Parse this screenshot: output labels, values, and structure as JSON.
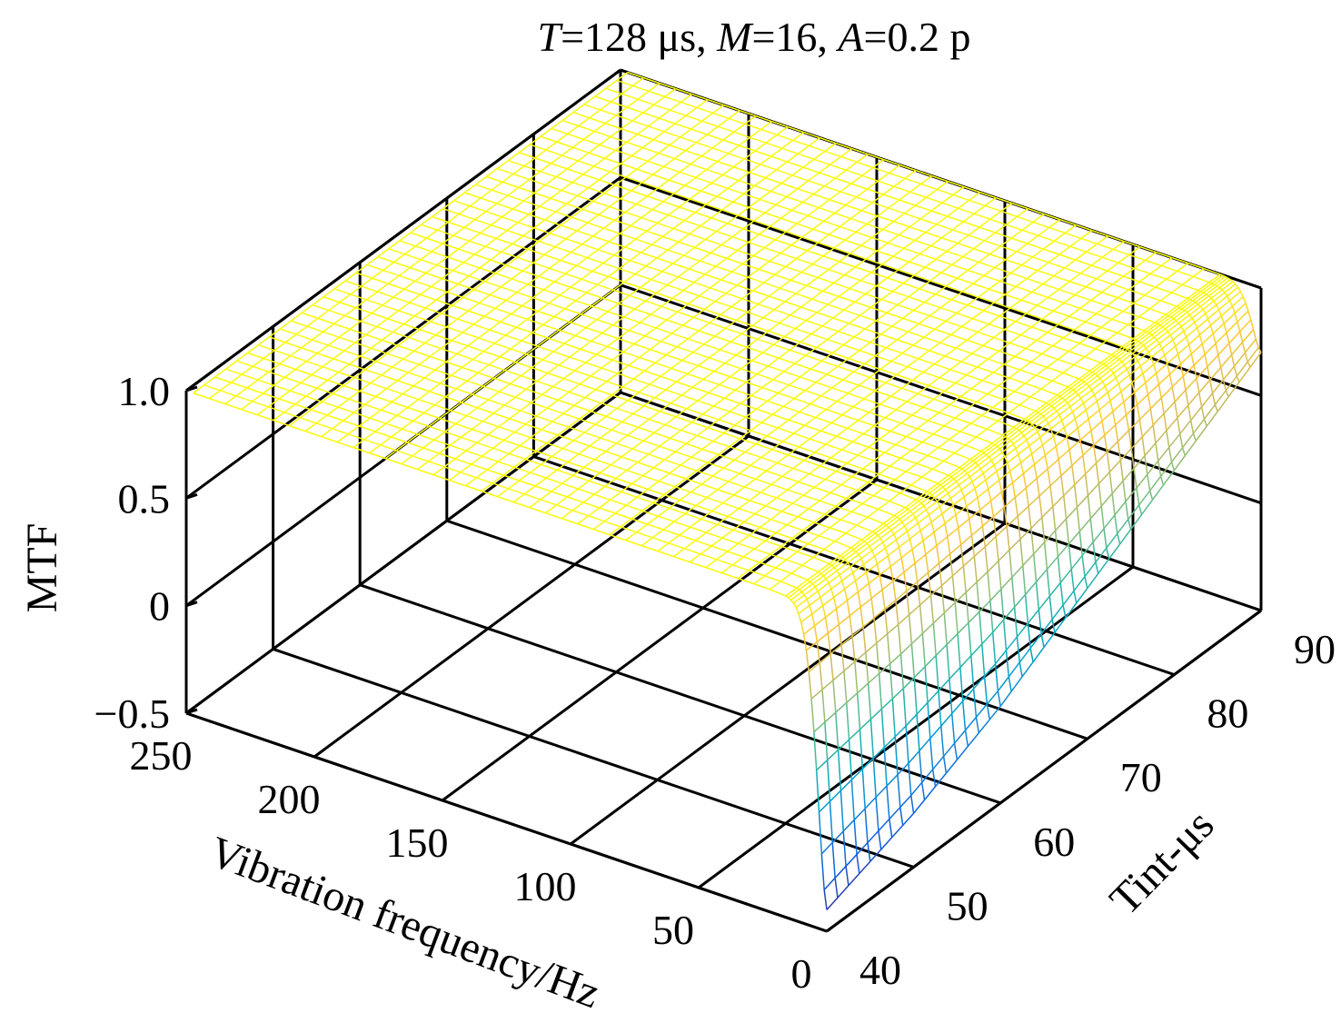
{
  "chart_data": {
    "type": "surface",
    "title": {
      "T_symbol": "T",
      "T_value": "=128 μs, ",
      "M_symbol": "M",
      "M_value": "=16, ",
      "A_symbol": "A",
      "A_value": "=0.2 p"
    },
    "xlabel": "Vibration frequency/Hz",
    "ylabel": "Tint-μs",
    "zlabel": "MTF",
    "x_range": [
      0,
      250
    ],
    "y_range": [
      40,
      90
    ],
    "z_range": [
      -0.5,
      1.0
    ],
    "x_ticks": [
      "0",
      "50",
      "100",
      "150",
      "200",
      "250"
    ],
    "y_ticks": [
      "40",
      "50",
      "60",
      "70",
      "80",
      "90"
    ],
    "z_ticks": [
      "−0.5",
      "0",
      "0.5",
      "1.0"
    ],
    "grid": true,
    "colormap": [
      "#352a87",
      "#0f5cdd",
      "#1481d6",
      "#06a4ca",
      "#2eb7a4",
      "#87bf77",
      "#d1bb59",
      "#fec832",
      "#f9fb0e"
    ],
    "surface_model": "MTF = 1 for frequencies above ~15 Hz; near 0 Hz MTF drops steeply, reaching about -0.4 at 0 Hz for Tint 40 μs and about 0.7 at 0 Hz for Tint 90 μs",
    "surface_samples": [
      {
        "frequency_hz": 0,
        "tint_us": 40,
        "mtf": -0.4
      },
      {
        "frequency_hz": 0,
        "tint_us": 50,
        "mtf": -0.25
      },
      {
        "frequency_hz": 0,
        "tint_us": 60,
        "mtf": -0.05
      },
      {
        "frequency_hz": 0,
        "tint_us": 70,
        "mtf": 0.2
      },
      {
        "frequency_hz": 0,
        "tint_us": 80,
        "mtf": 0.45
      },
      {
        "frequency_hz": 0,
        "tint_us": 90,
        "mtf": 0.7
      },
      {
        "frequency_hz": 3,
        "tint_us": 65,
        "mtf": 0.35
      },
      {
        "frequency_hz": 7,
        "tint_us": 65,
        "mtf": 0.8
      },
      {
        "frequency_hz": 12,
        "tint_us": 65,
        "mtf": 0.98
      },
      {
        "frequency_hz": 50,
        "tint_us": 65,
        "mtf": 1.0
      },
      {
        "frequency_hz": 250,
        "tint_us": 40,
        "mtf": 1.0
      },
      {
        "frequency_hz": 250,
        "tint_us": 90,
        "mtf": 1.0
      }
    ]
  }
}
